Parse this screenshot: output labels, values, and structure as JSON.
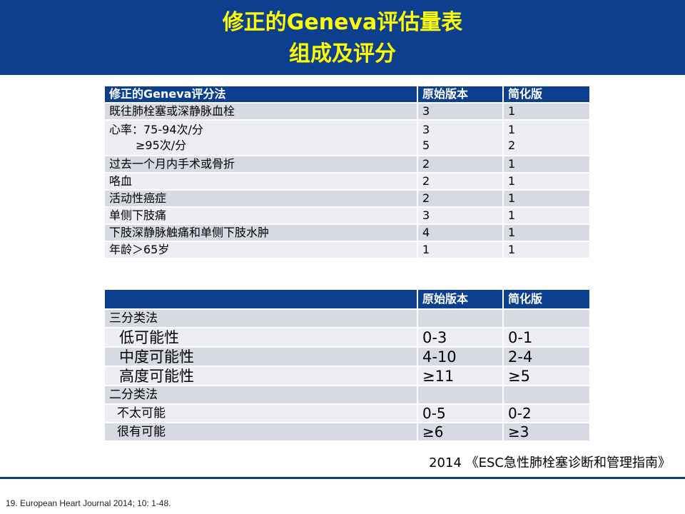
{
  "header": {
    "title_line1": "修正的Geneva评估量表",
    "title_line2": "组成及评分"
  },
  "table1": {
    "columns": [
      "修正的Geneva评分法",
      "原始版本",
      "简化版"
    ],
    "rows": [
      {
        "item": "既往肺栓塞或深静脉血栓",
        "original": "3",
        "simplified": "1"
      },
      {
        "item_line1": "心率：75-94次/分",
        "item_line2": "≥95次/分",
        "original_line1": "3",
        "original_line2": "5",
        "simplified_line1": "1",
        "simplified_line2": "2"
      },
      {
        "item": "过去一个月内手术或骨折",
        "original": "2",
        "simplified": "1"
      },
      {
        "item": "咯血",
        "original": "2",
        "simplified": "1"
      },
      {
        "item": "活动性癌症",
        "original": "2",
        "simplified": "1"
      },
      {
        "item": "单侧下肢痛",
        "original": "3",
        "simplified": "1"
      },
      {
        "item": "下肢深静脉触痛和单侧下肢水肿",
        "original": "4",
        "simplified": "1"
      },
      {
        "item": "年龄＞65岁",
        "original": "1",
        "simplified": "1"
      }
    ]
  },
  "table2": {
    "columns": [
      "",
      "原始版本",
      "简化版"
    ],
    "rows": [
      {
        "label": "三分类法",
        "original": "",
        "simplified": ""
      },
      {
        "label": "低可能性",
        "original": "0-3",
        "simplified": "0-1"
      },
      {
        "label": "中度可能性",
        "original": "4-10",
        "simplified": "2-4"
      },
      {
        "label": "高度可能性",
        "original": "≥11",
        "simplified": "≥5"
      },
      {
        "label": "二分类法",
        "original": "",
        "simplified": ""
      },
      {
        "label": "不太可能",
        "original": "0-5",
        "simplified": "0-2"
      },
      {
        "label": "很有可能",
        "original": "≥6",
        "simplified": "≥3"
      }
    ]
  },
  "reference": "2014 《ESC急性肺栓塞诊断和管理指南》",
  "citation": "19. European Heart Journal  2014; 10: 1-48.",
  "colors": {
    "banner": "#0d3f8f",
    "title": "#ffff00",
    "row_dark": "#d7d9e3",
    "row_light": "#eceef3"
  }
}
